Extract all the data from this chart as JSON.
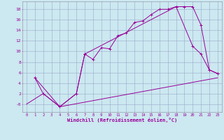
{
  "xlabel": "Windchill (Refroidissement éolien,°C)",
  "background_color": "#cce8f0",
  "grid_color": "#99aacc",
  "line_color": "#990099",
  "xlim": [
    -0.5,
    23.5
  ],
  "ylim": [
    -1.5,
    19.5
  ],
  "xticks": [
    0,
    1,
    2,
    3,
    4,
    5,
    6,
    7,
    8,
    9,
    10,
    11,
    12,
    13,
    14,
    15,
    16,
    17,
    18,
    19,
    20,
    21,
    22,
    23
  ],
  "yticks": [
    0,
    2,
    4,
    6,
    8,
    10,
    12,
    14,
    16,
    18
  ],
  "ytick_labels": [
    "-0",
    "2",
    "4",
    "6",
    "8",
    "10",
    "12",
    "14",
    "16",
    "18"
  ],
  "line1_x": [
    1,
    2,
    4,
    6,
    7,
    8,
    9,
    10,
    11,
    12,
    13,
    14,
    15,
    16,
    17,
    18,
    19,
    20,
    21,
    22,
    23
  ],
  "line1_y": [
    5,
    2,
    -0.5,
    2,
    9.5,
    8.5,
    10.7,
    10.5,
    13,
    13.5,
    15.5,
    15.8,
    17.0,
    18,
    18,
    18.5,
    18.5,
    18.5,
    15,
    6.5,
    5.8
  ],
  "line2_x": [
    1,
    4,
    6,
    7,
    18,
    20,
    21,
    22,
    23
  ],
  "line2_y": [
    5,
    -0.5,
    2,
    9.5,
    18.5,
    11,
    9.5,
    6.5,
    5.8
  ],
  "line3_x": [
    0,
    2,
    4,
    23
  ],
  "line3_y": [
    0,
    2,
    -0.5,
    5.0
  ],
  "figsize": [
    3.2,
    2.0
  ],
  "dpi": 100
}
